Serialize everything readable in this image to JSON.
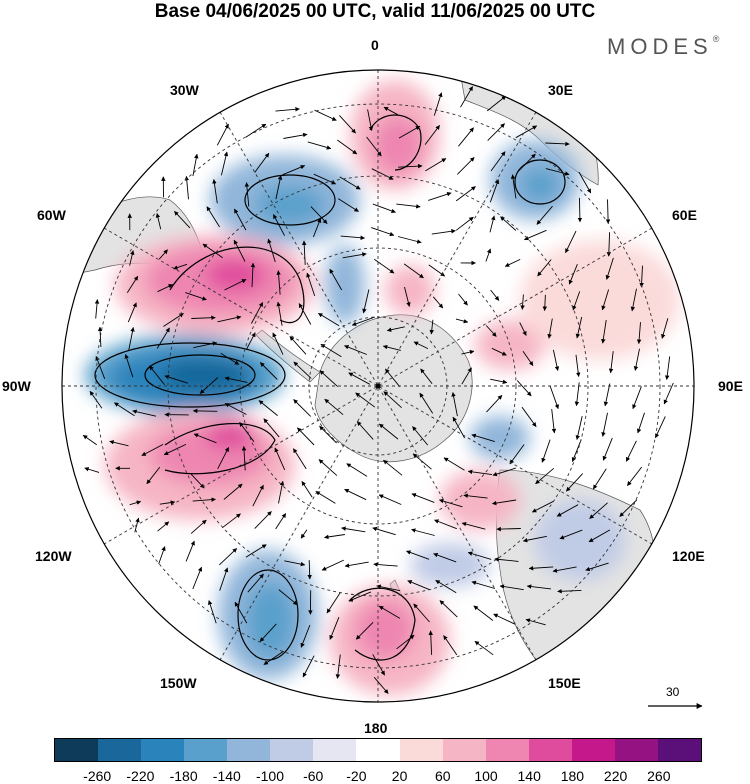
{
  "title": "Base 04/06/2025 00 UTC, valid 11/06/2025 00 UTC",
  "brand": {
    "name": "MODES",
    "mark": "®"
  },
  "longitude_labels": {
    "lon_0": "0",
    "lon_30e": "30E",
    "lon_60e": "60E",
    "lon_90e": "90E",
    "lon_120e": "120E",
    "lon_150e": "150E",
    "lon_180": "180",
    "lon_150w": "150W",
    "lon_120w": "120W",
    "lon_90w": "90W",
    "lon_60w": "60W",
    "lon_30w": "30W"
  },
  "wind_reference": {
    "label": "30"
  },
  "colorbar": {
    "colors": [
      "#0f3b5b",
      "#19679b",
      "#2b83bb",
      "#5aa0cc",
      "#91b6da",
      "#c0cbe6",
      "#e6e6f2",
      "#ffffff",
      "#fbdada",
      "#f6b5c4",
      "#ee86b1",
      "#e04c9d",
      "#c5198b",
      "#951282",
      "#5b0f78"
    ],
    "ticks": [
      "-260",
      "-220",
      "-180",
      "-140",
      "-100",
      "-60",
      "-20",
      "20",
      "60",
      "100",
      "140",
      "180",
      "220",
      "260"
    ]
  }
}
